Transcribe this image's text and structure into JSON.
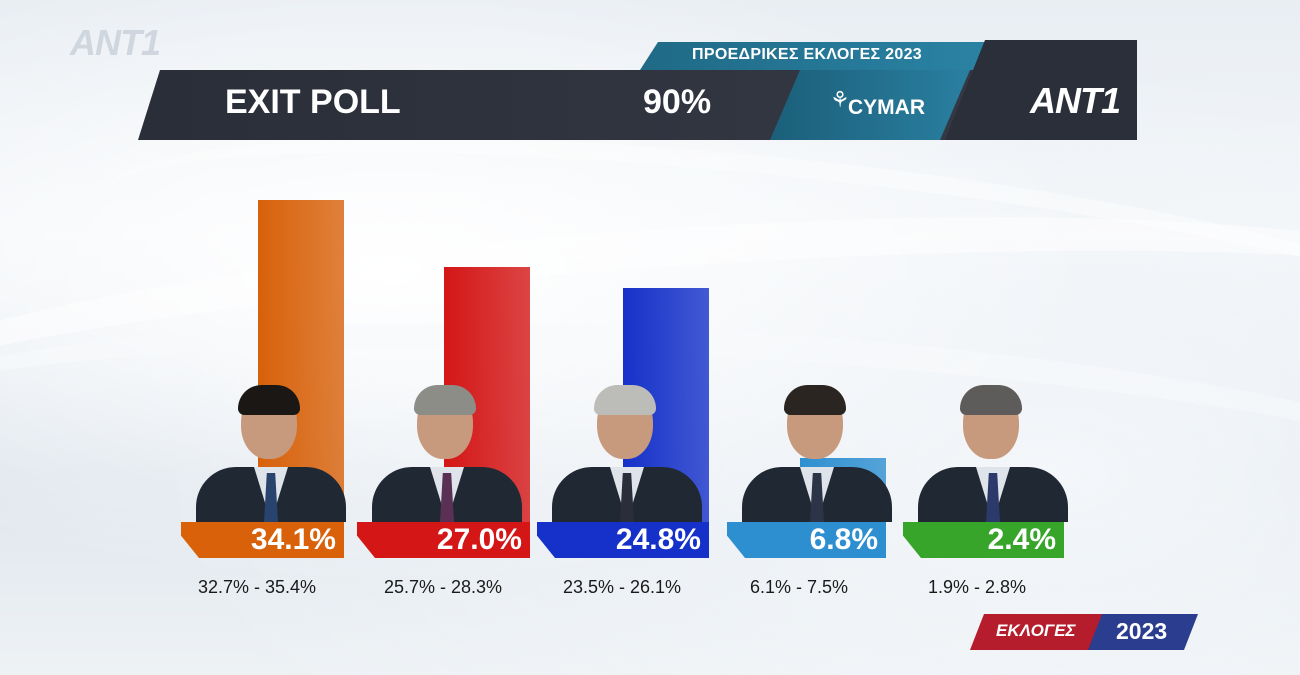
{
  "header": {
    "watermark": "ANT1",
    "subtitle": "ΠΡΟΕΔΡΙΚΕΣ ΕΚΛΟΓΕΣ 2023",
    "title": "EXIT POLL",
    "counted": "90%",
    "pollster": "CYMAR",
    "logo": "ANT1"
  },
  "footer": {
    "label": "ΕΚΛΟΓΕΣ",
    "year": "2023"
  },
  "chart_data": {
    "type": "bar",
    "title": "EXIT POLL",
    "ylim": [
      0,
      34.1
    ],
    "categories": [
      "candidate-1",
      "candidate-2",
      "candidate-3",
      "candidate-4",
      "candidate-5"
    ],
    "values": [
      34.1,
      27.0,
      24.8,
      6.8,
      2.4
    ],
    "labels": [
      "34.1%",
      "27.0%",
      "24.8%",
      "6.8%",
      "2.4%"
    ],
    "ranges": [
      "32.7% - 35.4%",
      "25.7% - 28.3%",
      "23.5% - 26.1%",
      "6.1% - 7.5%",
      "1.9% - 2.8%"
    ],
    "colors": [
      "#d8610a",
      "#d41616",
      "#1531c9",
      "#2e8fd0",
      "#37a52a"
    ],
    "label_colors": [
      "#d8610a",
      "#d41616",
      "#1531c9",
      "#2e8fd0",
      "#37a52a"
    ]
  }
}
